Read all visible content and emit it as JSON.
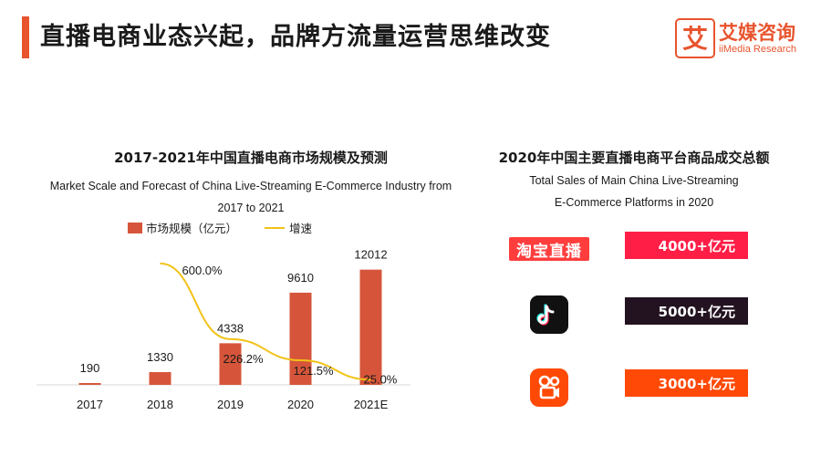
{
  "header": {
    "title": "直播电商业态兴起，品牌方流量运营思维改变",
    "logo_cn": "艾媒咨询",
    "logo_en": "iiMedia Research",
    "logo_mark_char": "艾"
  },
  "chart_data": {
    "type": "bar",
    "title": "2017-2021年中国直播电商市场规模及预测",
    "subtitle": "Market Scale and Forecast of China Live-Streaming E-Commerce Industry from 2017 to 2021",
    "categories": [
      "2017",
      "2018",
      "2019",
      "2020",
      "2021E"
    ],
    "series": [
      {
        "name": "市场规模（亿元）",
        "type": "bar",
        "color": "#d6553a",
        "values": [
          190,
          1330,
          4338,
          9610,
          12012
        ],
        "labels": [
          "190",
          "1330",
          "4338",
          "9610",
          "12012"
        ]
      },
      {
        "name": "增速",
        "type": "line",
        "color": "#f2c218",
        "x": [
          "2018",
          "2019",
          "2020",
          "2021E"
        ],
        "values": [
          600.0,
          226.2,
          121.5,
          25.0
        ],
        "labels": [
          "600.0%",
          "226.2%",
          "121.5%",
          "25.0%"
        ]
      }
    ],
    "ylim": [
      0,
      13500
    ],
    "growth_ylim": [
      0,
      640
    ],
    "legend": "top",
    "grid": false
  },
  "platforms": {
    "title": "2020年中国主要直播电商平台商品成交总额",
    "subtitle_line1": "Total Sales of Main China Live-Streaming",
    "subtitle_line2": "E-Commerce Platforms in 2020",
    "items": [
      {
        "logo": "淘宝直播",
        "icon": "taobao-live-logo",
        "value": "4000+亿元",
        "color": "#ff1e46"
      },
      {
        "logo": "",
        "icon": "douyin-logo",
        "value": "5000+亿元",
        "color": "#231321"
      },
      {
        "logo": "",
        "icon": "kuaishou-logo",
        "value": "3000+亿元",
        "color": "#ff4906"
      }
    ]
  }
}
